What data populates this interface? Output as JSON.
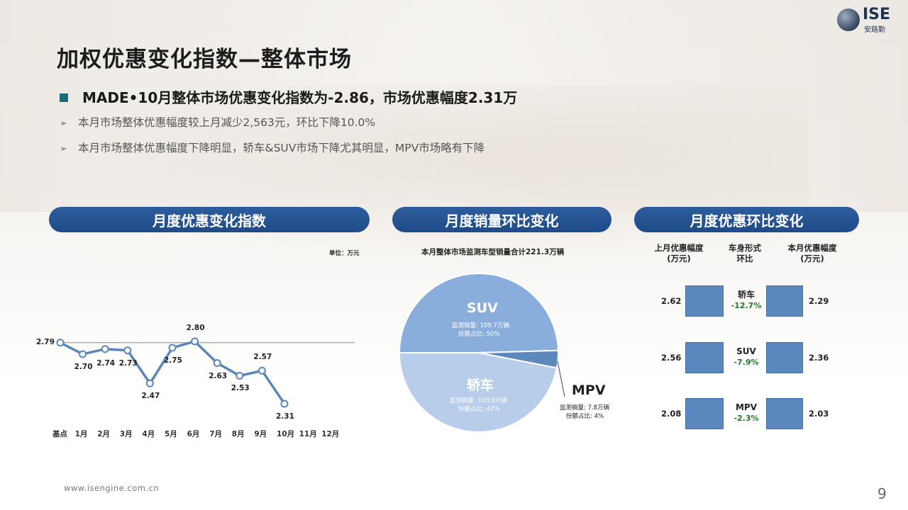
{
  "title": "加权优惠变化指数—整体市场",
  "logo": {
    "text": "ISE",
    "sub": "安路勤"
  },
  "heading": "MADE•10月整体市场优惠变化指数为-2.86，市场优惠幅度2.31万",
  "bullets": [
    "本月市场整体优惠幅度较上月减少2,563元，环比下降10.0%",
    "本月市场整体优惠幅度下降明显，轿车&SUV市场下降尤其明显，MPV市场略有下降"
  ],
  "panels": {
    "left": "月度优惠变化指数",
    "middle": "月度销量环比变化",
    "right": "月度优惠环比变化"
  },
  "line_chart": {
    "unit": "单位：万元"
  },
  "pie": {
    "note": "本月整体市场监测车型销量合计221.3万辆",
    "slices": [
      {
        "name": "SUV",
        "detail1": "监测销量: 109.7万辆",
        "detail2": "份额占比: 50%"
      },
      {
        "name": "轿车",
        "detail1": "监测销量: 103.9万辆",
        "detail2": "份额占比: 47%"
      },
      {
        "name": "MPV",
        "detail1": "监测销量: 7.8万辆",
        "detail2": "份额占比: 4%"
      }
    ]
  },
  "compare": {
    "headers": [
      "上月优惠幅度\n(万元)",
      "车身形式\n环比",
      "本月优惠幅度\n(万元)"
    ],
    "rows": [
      {
        "prev": "2.62",
        "type": "轿车",
        "pct": "-12.7%",
        "cur": "2.29"
      },
      {
        "prev": "2.56",
        "type": "SUV",
        "pct": "-7.9%",
        "cur": "2.36"
      },
      {
        "prev": "2.08",
        "type": "MPV",
        "pct": "-2.3%",
        "cur": "2.03"
      }
    ]
  },
  "footer": "www.isengine.com.cn",
  "page_number": "9",
  "chart_data": [
    {
      "type": "line",
      "categories": [
        "基点",
        "1月",
        "2月",
        "3月",
        "4月",
        "5月",
        "6月",
        "7月",
        "8月",
        "9月",
        "10月",
        "11月",
        "12月"
      ],
      "values": [
        2.79,
        2.7,
        2.74,
        2.73,
        2.47,
        2.75,
        2.8,
        2.63,
        2.53,
        2.57,
        2.31,
        null,
        null
      ],
      "labels": [
        "2.79",
        "2.70",
        "2.74",
        "2.73",
        "2.47",
        "2.75",
        "2.80",
        "2.63",
        "2.53",
        "2.57",
        "2.31"
      ],
      "baseline": 2.79,
      "color": "#5b86b8",
      "grid": false
    },
    {
      "type": "pie",
      "categories": [
        "SUV",
        "轿车",
        "MPV"
      ],
      "values": [
        109.7,
        103.9,
        7.8
      ],
      "colors": [
        "#8aaedb",
        "#b7cdea",
        "#5b88bd"
      ]
    }
  ]
}
